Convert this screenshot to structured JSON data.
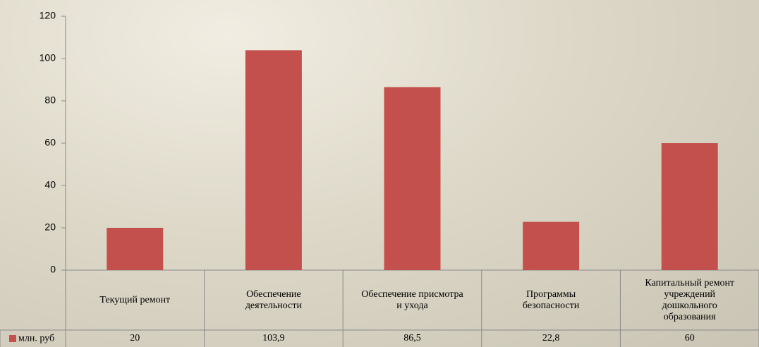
{
  "chart_data": {
    "type": "bar",
    "categories": [
      "Текущий ремонт",
      "Обеспечение деятельности",
      "Обеспечение присмотра и ухода",
      "Программы безопасности",
      "Капитальный ремонт учреждений дошкольного образования"
    ],
    "series": [
      {
        "name": "млн. руб",
        "color": "#c4504e",
        "values": [
          20,
          103.9,
          86.5,
          22.8,
          60
        ],
        "value_labels": [
          "20",
          "103,9",
          "86,5",
          "22,8",
          "60"
        ]
      }
    ],
    "ylim": [
      0,
      120
    ],
    "yticks": [
      0,
      20,
      40,
      60,
      80,
      100,
      120
    ],
    "grid": false
  }
}
